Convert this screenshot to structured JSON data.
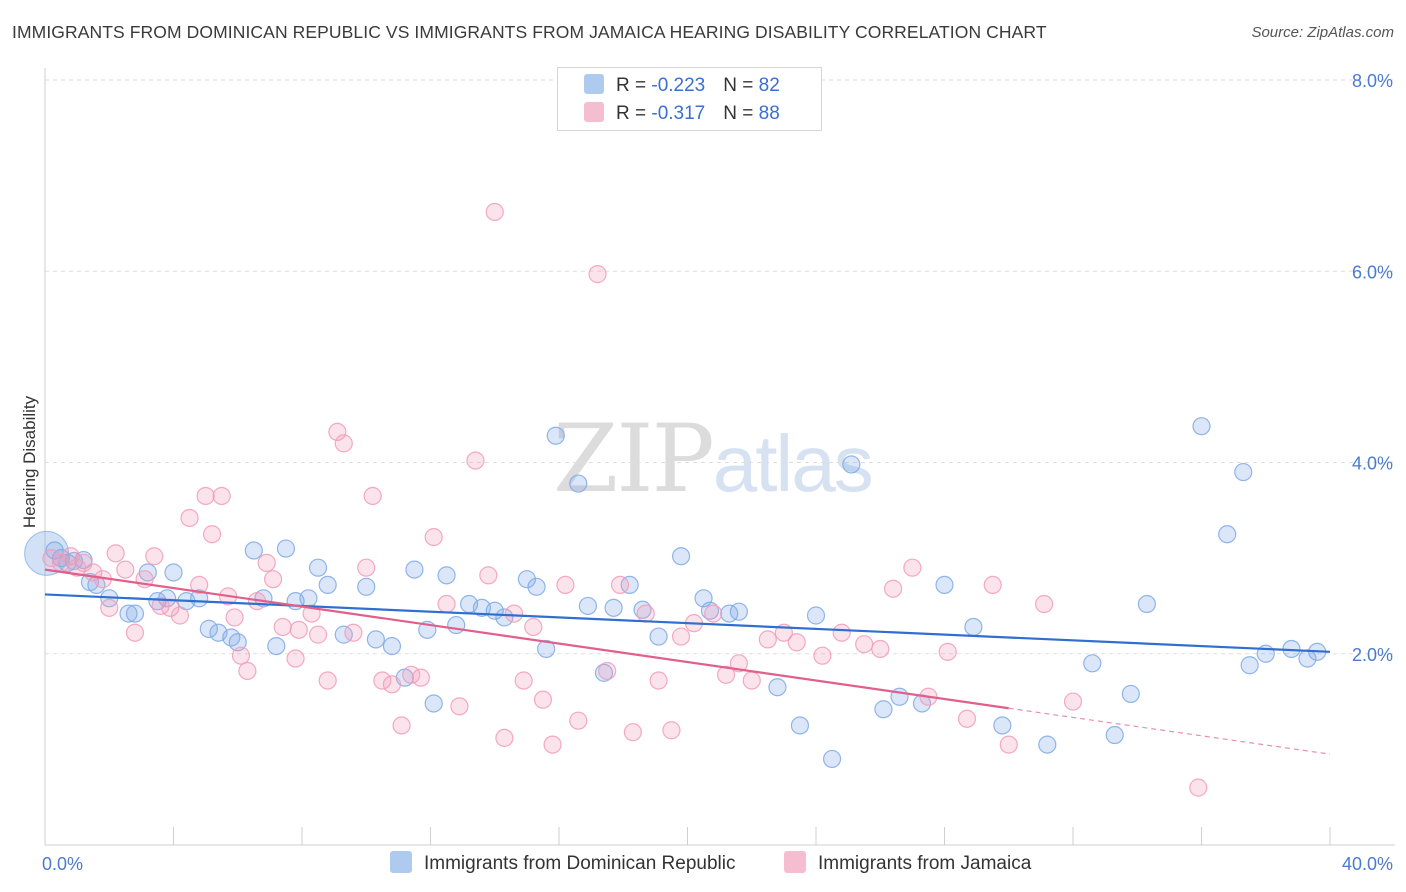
{
  "title": "IMMIGRANTS FROM DOMINICAN REPUBLIC VS IMMIGRANTS FROM JAMAICA HEARING DISABILITY CORRELATION CHART",
  "source": "Source: ZipAtlas.com",
  "watermark": {
    "zip": "ZIP",
    "atlas": "atlas"
  },
  "legend": {
    "rows": [
      {
        "r_label": "R = ",
        "r_value": "-0.223",
        "n_label": "N = ",
        "n_value": "82",
        "color": "#a7c5ee"
      },
      {
        "r_label": "R = ",
        "r_value": "-0.317",
        "n_label": "N = ",
        "n_value": "88",
        "color": "#f5b8cc"
      }
    ]
  },
  "bottom_legend": [
    {
      "label": "Immigrants from Dominican Republic",
      "color": "#a7c5ee"
    },
    {
      "label": "Immigrants from Jamaica",
      "color": "#f5b8cc"
    }
  ],
  "chart_data": {
    "type": "scatter",
    "title": "IMMIGRANTS FROM DOMINICAN REPUBLIC VS IMMIGRANTS FROM JAMAICA HEARING DISABILITY CORRELATION CHART",
    "xlabel": "",
    "ylabel": "Hearing Disability",
    "xlim": [
      0,
      40
    ],
    "ylim": [
      0,
      8
    ],
    "x_ticks": [
      "0.0%",
      "40.0%"
    ],
    "y_ticks": [
      "2.0%",
      "4.0%",
      "6.0%",
      "8.0%"
    ],
    "grid": true,
    "legend_position": "top-center",
    "series": [
      {
        "name": "Immigrants from Dominican Republic",
        "color": "#7ea9e6",
        "line_color": "#2f6fd0",
        "trend": {
          "x0": 0,
          "y0": 2.62,
          "x1": 40,
          "y1": 2.02
        },
        "points": [
          [
            0.3,
            3.08
          ],
          [
            0.5,
            3.0
          ],
          [
            0.7,
            2.95
          ],
          [
            0.9,
            2.97
          ],
          [
            1.2,
            2.98
          ],
          [
            1.4,
            2.75
          ],
          [
            1.6,
            2.72
          ],
          [
            2.0,
            2.58
          ],
          [
            2.6,
            2.42
          ],
          [
            2.8,
            2.42
          ],
          [
            3.2,
            2.85
          ],
          [
            3.5,
            2.55
          ],
          [
            3.8,
            2.58
          ],
          [
            4.0,
            2.85
          ],
          [
            4.4,
            2.55
          ],
          [
            4.8,
            2.58
          ],
          [
            5.1,
            2.26
          ],
          [
            5.4,
            2.22
          ],
          [
            5.8,
            2.17
          ],
          [
            6.0,
            2.12
          ],
          [
            6.5,
            3.08
          ],
          [
            6.8,
            2.58
          ],
          [
            7.2,
            2.08
          ],
          [
            7.5,
            3.1
          ],
          [
            7.8,
            2.55
          ],
          [
            8.2,
            2.58
          ],
          [
            8.5,
            2.9
          ],
          [
            8.8,
            2.72
          ],
          [
            9.3,
            2.2
          ],
          [
            10.0,
            2.7
          ],
          [
            10.3,
            2.15
          ],
          [
            10.8,
            2.08
          ],
          [
            11.2,
            1.75
          ],
          [
            11.5,
            2.88
          ],
          [
            11.9,
            2.25
          ],
          [
            12.1,
            1.48
          ],
          [
            12.5,
            2.82
          ],
          [
            12.8,
            2.3
          ],
          [
            13.2,
            2.52
          ],
          [
            13.6,
            2.48
          ],
          [
            14.0,
            2.45
          ],
          [
            14.3,
            2.38
          ],
          [
            15.0,
            2.78
          ],
          [
            15.3,
            2.7
          ],
          [
            15.6,
            2.05
          ],
          [
            15.9,
            4.28
          ],
          [
            16.6,
            3.78
          ],
          [
            16.9,
            2.5
          ],
          [
            17.4,
            1.8
          ],
          [
            17.7,
            2.48
          ],
          [
            18.2,
            2.72
          ],
          [
            18.6,
            2.46
          ],
          [
            19.1,
            2.18
          ],
          [
            19.8,
            3.02
          ],
          [
            20.5,
            2.58
          ],
          [
            20.7,
            2.45
          ],
          [
            21.3,
            2.42
          ],
          [
            21.6,
            2.44
          ],
          [
            22.8,
            1.65
          ],
          [
            23.5,
            1.25
          ],
          [
            24.0,
            2.4
          ],
          [
            24.5,
            0.9
          ],
          [
            25.1,
            3.98
          ],
          [
            26.1,
            1.42
          ],
          [
            26.6,
            1.55
          ],
          [
            27.3,
            1.48
          ],
          [
            28.0,
            2.72
          ],
          [
            28.9,
            2.28
          ],
          [
            29.8,
            1.25
          ],
          [
            31.2,
            1.05
          ],
          [
            32.6,
            1.9
          ],
          [
            33.3,
            1.15
          ],
          [
            33.8,
            1.58
          ],
          [
            34.3,
            2.52
          ],
          [
            36.0,
            4.38
          ],
          [
            36.8,
            3.25
          ],
          [
            37.3,
            3.9
          ],
          [
            37.5,
            1.88
          ],
          [
            38.0,
            2.0
          ],
          [
            38.8,
            2.05
          ],
          [
            39.3,
            1.95
          ],
          [
            39.6,
            2.02
          ]
        ]
      },
      {
        "name": "Immigrants from Jamaica",
        "color": "#f29bb8",
        "line_color": "#e05f8c",
        "trend": {
          "x0": 0,
          "y0": 2.88,
          "x1": 30,
          "y1": 1.43
        },
        "trend_extension": {
          "x0": 30,
          "y0": 1.43,
          "x1": 40,
          "y1": 0.95
        },
        "points": [
          [
            0.2,
            3.0
          ],
          [
            0.5,
            2.95
          ],
          [
            0.8,
            3.02
          ],
          [
            1.0,
            2.9
          ],
          [
            1.2,
            2.95
          ],
          [
            1.5,
            2.85
          ],
          [
            1.8,
            2.78
          ],
          [
            2.0,
            2.48
          ],
          [
            2.2,
            3.05
          ],
          [
            2.5,
            2.88
          ],
          [
            2.8,
            2.22
          ],
          [
            3.1,
            2.78
          ],
          [
            3.4,
            3.02
          ],
          [
            3.6,
            2.5
          ],
          [
            3.9,
            2.48
          ],
          [
            4.2,
            2.4
          ],
          [
            4.5,
            3.42
          ],
          [
            4.8,
            2.72
          ],
          [
            5.0,
            3.65
          ],
          [
            5.2,
            3.25
          ],
          [
            5.5,
            3.65
          ],
          [
            5.7,
            2.6
          ],
          [
            5.9,
            2.38
          ],
          [
            6.1,
            1.98
          ],
          [
            6.3,
            1.82
          ],
          [
            6.6,
            2.55
          ],
          [
            6.9,
            2.95
          ],
          [
            7.1,
            2.78
          ],
          [
            7.4,
            2.28
          ],
          [
            7.8,
            1.95
          ],
          [
            7.9,
            2.25
          ],
          [
            8.3,
            2.42
          ],
          [
            8.5,
            2.2
          ],
          [
            8.8,
            1.72
          ],
          [
            9.1,
            4.32
          ],
          [
            9.3,
            4.2
          ],
          [
            9.6,
            2.22
          ],
          [
            10.0,
            2.9
          ],
          [
            10.2,
            3.65
          ],
          [
            10.5,
            1.72
          ],
          [
            10.8,
            1.68
          ],
          [
            11.1,
            1.25
          ],
          [
            11.4,
            1.78
          ],
          [
            11.7,
            1.75
          ],
          [
            12.1,
            3.22
          ],
          [
            12.5,
            2.52
          ],
          [
            12.9,
            1.45
          ],
          [
            13.4,
            4.02
          ],
          [
            13.8,
            2.82
          ],
          [
            14.0,
            6.62
          ],
          [
            14.3,
            1.12
          ],
          [
            14.6,
            2.42
          ],
          [
            14.9,
            1.72
          ],
          [
            15.2,
            2.28
          ],
          [
            15.5,
            1.52
          ],
          [
            15.8,
            1.05
          ],
          [
            16.2,
            2.72
          ],
          [
            16.6,
            1.3
          ],
          [
            17.2,
            5.97
          ],
          [
            17.5,
            1.82
          ],
          [
            17.9,
            2.72
          ],
          [
            18.3,
            1.18
          ],
          [
            18.7,
            2.42
          ],
          [
            19.1,
            1.72
          ],
          [
            19.5,
            1.2
          ],
          [
            19.8,
            2.18
          ],
          [
            20.2,
            2.32
          ],
          [
            20.8,
            2.42
          ],
          [
            21.2,
            1.78
          ],
          [
            21.6,
            1.9
          ],
          [
            22.0,
            1.72
          ],
          [
            22.5,
            2.15
          ],
          [
            23.0,
            2.22
          ],
          [
            23.4,
            2.12
          ],
          [
            24.2,
            1.98
          ],
          [
            24.8,
            2.22
          ],
          [
            25.5,
            2.1
          ],
          [
            26.0,
            2.05
          ],
          [
            26.4,
            2.68
          ],
          [
            27.0,
            2.9
          ],
          [
            27.5,
            1.55
          ],
          [
            28.1,
            2.02
          ],
          [
            28.7,
            1.32
          ],
          [
            29.5,
            2.72
          ],
          [
            30.0,
            1.05
          ],
          [
            31.1,
            2.52
          ],
          [
            32.0,
            1.5
          ],
          [
            35.9,
            0.6
          ]
        ]
      }
    ]
  }
}
